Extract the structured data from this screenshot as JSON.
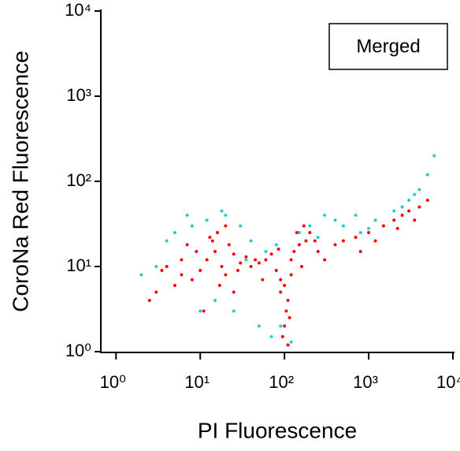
{
  "chart_data": {
    "type": "scatter",
    "xlabel": "PI Fluorescence",
    "ylabel": "CoroNa Red Fluorescence",
    "annotation": "Merged",
    "log_x": true,
    "log_y": true,
    "xlim": [
      0.66,
      10000
    ],
    "ylim": [
      1,
      10000
    ],
    "xticks": [
      {
        "value": 1,
        "label": "10⁰"
      },
      {
        "value": 10,
        "label": "10¹"
      },
      {
        "value": 100,
        "label": "10²"
      },
      {
        "value": 1000,
        "label": "10³"
      },
      {
        "value": 10000,
        "label": "10⁴"
      }
    ],
    "yticks": [
      {
        "value": 1,
        "label": "10⁰"
      },
      {
        "value": 10,
        "label": "10¹"
      },
      {
        "value": 100,
        "label": "10²"
      },
      {
        "value": 1000,
        "label": "10³"
      },
      {
        "value": 10000,
        "label": "10⁴"
      }
    ],
    "series": [
      {
        "color": "#22cccc",
        "x": [
          5,
          8,
          12,
          20,
          30,
          40,
          60,
          80,
          150,
          200,
          300,
          500,
          800,
          1200,
          2000,
          3000,
          4000,
          5000,
          6000,
          3,
          4,
          2,
          15,
          25,
          50,
          70,
          120,
          250,
          400,
          700,
          1500,
          2500,
          3500,
          1000,
          90,
          110,
          35,
          18,
          7,
          10
        ],
        "values": [
          25,
          30,
          35,
          40,
          30,
          20,
          15,
          18,
          25,
          30,
          40,
          30,
          25,
          35,
          45,
          60,
          80,
          120,
          200,
          10,
          20,
          8,
          4,
          3,
          2,
          1.5,
          1.3,
          22,
          35,
          40,
          30,
          50,
          70,
          28,
          2,
          1.2,
          12,
          45,
          40,
          3
        ]
      },
      {
        "color": "#ff0000",
        "x": [
          12,
          15,
          18,
          20,
          25,
          30,
          22,
          14,
          10,
          8,
          6,
          5,
          4,
          3,
          2.5,
          16,
          28,
          35,
          40,
          50,
          60,
          70,
          80,
          90,
          100,
          110,
          120,
          130,
          150,
          180,
          200,
          250,
          300,
          100,
          95,
          105,
          110,
          90,
          115,
          120,
          400,
          500,
          700,
          1000,
          1500,
          2000,
          2500,
          3000,
          4000,
          5000,
          3500,
          2200,
          1200,
          800,
          20,
          25,
          9,
          11,
          13,
          17,
          85,
          140,
          160,
          170,
          230,
          6,
          7,
          45,
          55,
          3.5
        ],
        "values": [
          12,
          15,
          10,
          8,
          14,
          11,
          18,
          20,
          9,
          7,
          12,
          6,
          10,
          5,
          4,
          25,
          9,
          13,
          10,
          11,
          12,
          14,
          9,
          7,
          6,
          4,
          12,
          15,
          18,
          20,
          25,
          15,
          12,
          2,
          1.5,
          3,
          1.2,
          5,
          2.5,
          8,
          18,
          20,
          22,
          25,
          30,
          35,
          40,
          45,
          50,
          60,
          35,
          28,
          20,
          15,
          30,
          5,
          15,
          3,
          22,
          6,
          16,
          25,
          10,
          30,
          20,
          8,
          18,
          12,
          7,
          9
        ]
      }
    ]
  }
}
